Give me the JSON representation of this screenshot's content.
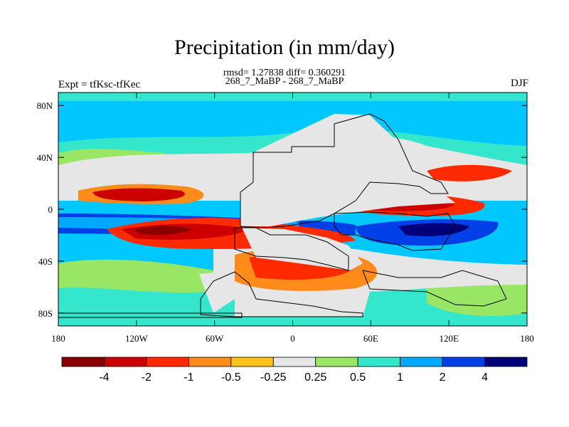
{
  "map": {
    "title": "Precipitation (in mm/day)",
    "stats": "rmsd= 1.27838 diff= 0.360291",
    "subtitle": "268_7_MaBP - 268_7_MaBP",
    "left_label": "Expt = tfKsc-tfKec",
    "right_label": "DJF",
    "lon_ticks": [
      "180",
      "120W",
      "60W",
      "0",
      "60E",
      "120E",
      "180"
    ],
    "lat_ticks": [
      "80N",
      "40N",
      "0",
      "40S",
      "80S"
    ]
  },
  "colorbar": {
    "labels": [
      "-4",
      "-2",
      "-1",
      "-0.5",
      "-0.25",
      "0.25",
      "0.5",
      "1",
      "2",
      "4"
    ],
    "colors": [
      "#8a0000",
      "#cc0000",
      "#ff2a00",
      "#ff8c1a",
      "#ffc21a",
      "#e6e6e6",
      "#99e665",
      "#33e6cc",
      "#00a8ff",
      "#0040e6",
      "#00007a"
    ]
  },
  "colors": {
    "ocean_background": "#00c8ff",
    "land_neutral": "#e6e6e6",
    "coastline": "#000000"
  }
}
